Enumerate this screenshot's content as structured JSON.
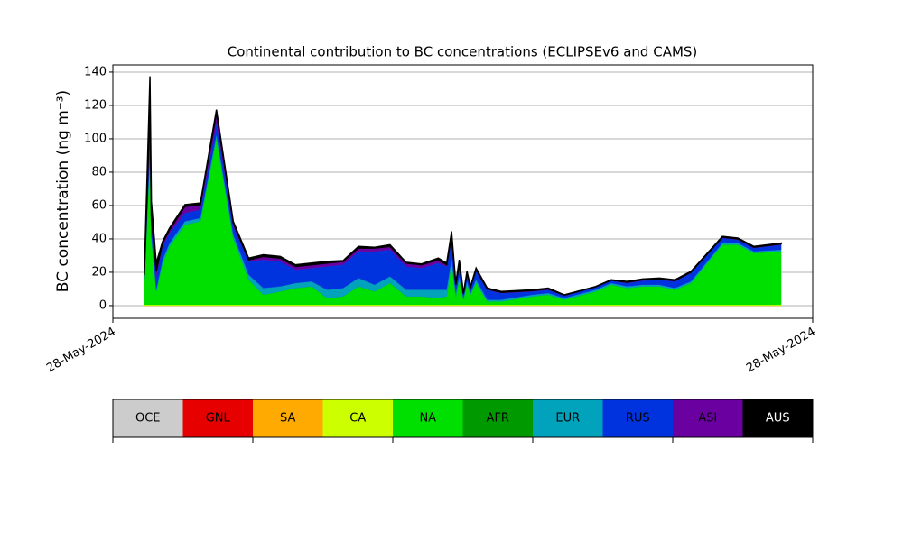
{
  "chart_data": {
    "type": "stacked-area",
    "title": "Continental contribution to BC concentrations (ECLIPSEv6 and CAMS)",
    "ylabel": "BC concentration (ng m⁻³)",
    "x": [
      0.045,
      0.053,
      0.055,
      0.062,
      0.071,
      0.081,
      0.103,
      0.125,
      0.148,
      0.172,
      0.194,
      0.215,
      0.239,
      0.261,
      0.284,
      0.306,
      0.329,
      0.351,
      0.374,
      0.396,
      0.419,
      0.441,
      0.465,
      0.477,
      0.484,
      0.49,
      0.495,
      0.501,
      0.506,
      0.511,
      0.519,
      0.535,
      0.555,
      0.6,
      0.622,
      0.645,
      0.69,
      0.712,
      0.735,
      0.757,
      0.781,
      0.803,
      0.826,
      0.871,
      0.893,
      0.916,
      0.955
    ],
    "xlim": [
      0,
      1
    ],
    "xticks": [
      {
        "value": 0,
        "label": "28-May-2024"
      },
      {
        "value": 1,
        "label": "28-May-2024"
      }
    ],
    "ylim": [
      -7.6,
      144.3
    ],
    "yticks": [
      0,
      20,
      40,
      60,
      80,
      100,
      120,
      140
    ],
    "grid": true,
    "series": [
      {
        "name": "OCE",
        "color": "#cccccc",
        "values": [
          0,
          0,
          0,
          0,
          0,
          0,
          0,
          0,
          0,
          0,
          0,
          0,
          0,
          0,
          0,
          0,
          0,
          0,
          0,
          0,
          0,
          0,
          0,
          0,
          0,
          0,
          0,
          0,
          0,
          0,
          0,
          0,
          0,
          0,
          0,
          0,
          0,
          0,
          0,
          0,
          0,
          0,
          0,
          0,
          0,
          0,
          0
        ]
      },
      {
        "name": "GNL",
        "color": "#e60000",
        "values": [
          0,
          0,
          0,
          0,
          0,
          0,
          0,
          0,
          0,
          0,
          0,
          0,
          0,
          0,
          0,
          0,
          0,
          0,
          0,
          0,
          0,
          0,
          0,
          0,
          0,
          0,
          0,
          0,
          0,
          0,
          0,
          0,
          0,
          0,
          0,
          0,
          0,
          0,
          0,
          0,
          0,
          0,
          0,
          0,
          0,
          0,
          0
        ]
      },
      {
        "name": "SA",
        "color": "#ffaa00",
        "values": [
          0,
          0,
          0,
          0,
          0,
          0,
          0,
          0,
          0,
          0,
          0,
          0,
          0,
          0,
          0,
          0,
          0,
          0,
          0,
          0,
          0,
          0,
          0,
          0,
          0,
          0,
          0,
          0,
          0,
          0,
          0,
          0,
          0,
          0,
          0,
          0,
          0,
          0,
          0,
          0,
          0,
          0,
          0,
          0,
          0,
          0,
          0
        ]
      },
      {
        "name": "CA",
        "color": "#ccff00",
        "values": [
          0.5,
          0.5,
          0.5,
          0.5,
          0.5,
          0.5,
          0.5,
          0.5,
          0.5,
          0.5,
          0.5,
          0.5,
          0.5,
          0.5,
          0.5,
          0.5,
          0.5,
          0.5,
          0.5,
          0.5,
          0.5,
          0.5,
          0.5,
          0.5,
          0.5,
          0.5,
          0.5,
          0.5,
          0.5,
          0.5,
          0.5,
          0.5,
          0.5,
          0.5,
          0.5,
          0.5,
          0.5,
          0.5,
          0.5,
          0.5,
          0.5,
          0.5,
          0.5,
          0.5,
          0.5,
          0.5,
          0.5
        ]
      },
      {
        "name": "NA",
        "color": "#00e000",
        "values": [
          15,
          90,
          40,
          8,
          25,
          35,
          48,
          50,
          100,
          40,
          15,
          6,
          8,
          10,
          11,
          4,
          5,
          11,
          8,
          13,
          5,
          5,
          4,
          5,
          25,
          5,
          15,
          3,
          12,
          6,
          13,
          2,
          2,
          5,
          6,
          3,
          8,
          12,
          10,
          11,
          11,
          9,
          13,
          36,
          36,
          31,
          32
        ]
      },
      {
        "name": "AFR",
        "color": "#009a00",
        "values": [
          0,
          0,
          0,
          0,
          0,
          0,
          0,
          0,
          0,
          0,
          0,
          0,
          0,
          0,
          0,
          0,
          0,
          0,
          0,
          0,
          0,
          0,
          0,
          0,
          0,
          0,
          0,
          0,
          0,
          0,
          0,
          0,
          0,
          0,
          0,
          0,
          0,
          0,
          0,
          0,
          0,
          0,
          0,
          0,
          0,
          0,
          0
        ]
      },
      {
        "name": "EUR",
        "color": "#00a3bb",
        "values": [
          1,
          2,
          2,
          1,
          2,
          2,
          2,
          2,
          2,
          2,
          3,
          4,
          3,
          3,
          3,
          5,
          5,
          5,
          4,
          4,
          4,
          4,
          5,
          4,
          3,
          2,
          2,
          1,
          2,
          1,
          2,
          1,
          1,
          1,
          1,
          1,
          1,
          1,
          1,
          1,
          1,
          1,
          1,
          1,
          1,
          1,
          1
        ]
      },
      {
        "name": "RUS",
        "color": "#0033dd",
        "values": [
          1,
          10,
          5,
          8,
          8,
          6,
          5,
          5,
          7,
          5,
          8,
          17,
          15,
          8,
          8,
          14,
          14,
          16,
          20,
          16,
          14,
          13,
          16,
          14,
          10,
          4,
          6,
          2,
          4,
          3,
          5,
          6,
          4,
          2,
          2,
          1.5,
          1.5,
          1.5,
          2,
          2.5,
          3,
          4,
          5,
          3,
          2,
          2,
          3
        ]
      },
      {
        "name": "ASI",
        "color": "#6a00a0",
        "values": [
          1,
          15,
          5,
          3,
          2,
          2,
          4,
          3,
          6,
          2,
          1,
          2,
          2,
          2,
          2,
          2,
          2,
          2,
          2,
          2,
          2,
          2,
          2,
          1,
          3,
          1,
          1,
          0.5,
          1,
          0.5,
          1,
          0.5,
          0.5,
          0.5,
          0.5,
          0.3,
          0.3,
          0.3,
          0.5,
          0.5,
          0.5,
          0.5,
          0.5,
          0.5,
          0.5,
          0.5,
          0.5
        ]
      },
      {
        "name": "AUS",
        "color": "#000000",
        "values": [
          2,
          20,
          10,
          5,
          1,
          1,
          1,
          1,
          2,
          1,
          1,
          1,
          1,
          1,
          1,
          1,
          0.5,
          1,
          0.5,
          1,
          0.5,
          0.5,
          1,
          1,
          3,
          1,
          3,
          0.5,
          1,
          0.5,
          1,
          0.5,
          0.5,
          0.5,
          0.5,
          0.2,
          0.2,
          0.2,
          0.5,
          0.5,
          0.5,
          0.5,
          0.5,
          0.5,
          0.5,
          0.5,
          0.5
        ]
      }
    ]
  }
}
